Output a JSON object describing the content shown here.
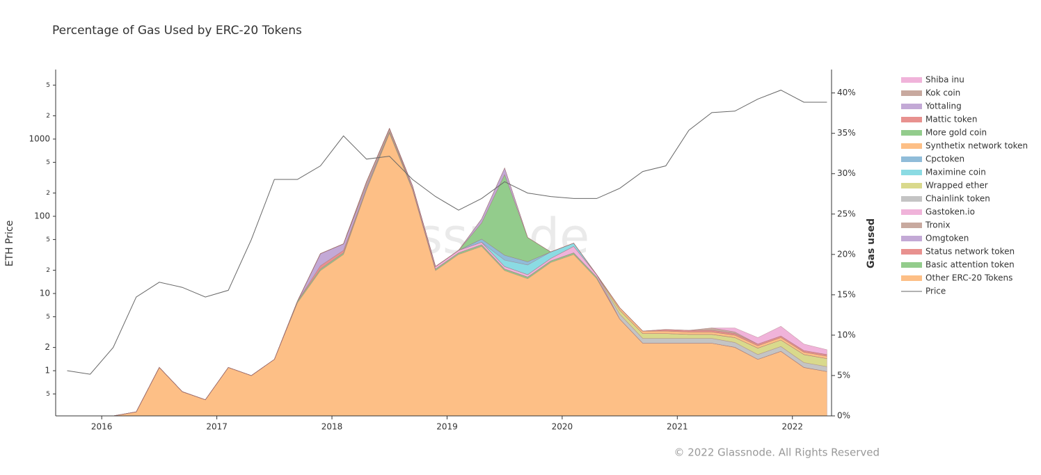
{
  "chart_data": {
    "type": "stacked-area",
    "title": "Percentage of Gas Used by ERC-20 Tokens",
    "ylabel": "ETH Price",
    "y2label": "Gas used",
    "watermark": "glassnode",
    "footer": "© 2022 Glassnode. All Rights Reserved",
    "log_y": true,
    "legend": "right",
    "x": [
      2015.7,
      2015.9,
      2016.1,
      2016.3,
      2016.5,
      2016.7,
      2016.9,
      2017.1,
      2017.3,
      2017.5,
      2017.7,
      2017.9,
      2018.1,
      2018.3,
      2018.5,
      2018.7,
      2018.9,
      2019.1,
      2019.3,
      2019.5,
      2019.7,
      2019.9,
      2020.1,
      2020.3,
      2020.5,
      2020.7,
      2020.9,
      2021.1,
      2021.3,
      2021.5,
      2021.7,
      2021.9,
      2022.1,
      2022.3
    ],
    "xlim": [
      2015.6,
      2022.34
    ],
    "xticks": [
      2016,
      2017,
      2018,
      2019,
      2020,
      2021,
      2022
    ],
    "ylim": [
      0.26,
      7950
    ],
    "yticks": [
      {
        "value": 0.5,
        "label": "5"
      },
      1,
      2,
      {
        "value": 5,
        "label": "5"
      },
      10,
      {
        "value": 20,
        "label": "2"
      },
      {
        "value": 50,
        "label": "5"
      },
      100,
      {
        "value": 200,
        "label": "2"
      },
      {
        "value": 500,
        "label": "5"
      },
      1000,
      {
        "value": 2000,
        "label": "2"
      },
      {
        "value": 5000,
        "label": "5"
      }
    ],
    "y2lim": [
      0,
      42.9
    ],
    "y2ticks": [
      {
        "value": 0,
        "label": "0%"
      },
      {
        "value": 5,
        "label": "5%"
      },
      {
        "value": 10,
        "label": "10%"
      },
      {
        "value": 15,
        "label": "15%"
      },
      {
        "value": 20,
        "label": "20%"
      },
      {
        "value": 25,
        "label": "25%"
      },
      {
        "value": 30,
        "label": "30%"
      },
      {
        "value": 35,
        "label": "35%"
      },
      {
        "value": 40,
        "label": "40%"
      }
    ],
    "series": [
      {
        "name": "Shiba inu",
        "color": "#f0b3da",
        "axis": "y2",
        "values": [
          0,
          0,
          0,
          0,
          0,
          0,
          0,
          0,
          0,
          0,
          0,
          0,
          0,
          0,
          0,
          0,
          0,
          0,
          0,
          0,
          0,
          0,
          0,
          0,
          0,
          0,
          0,
          0,
          0,
          0.5,
          0.8,
          1.2,
          0.8,
          0.6
        ]
      },
      {
        "name": "Kok coin",
        "color": "#c8a99f",
        "axis": "y2",
        "values": [
          0,
          0,
          0,
          0,
          0,
          0,
          0,
          0,
          0,
          0,
          0,
          0,
          0,
          0,
          0,
          0,
          0,
          0,
          0,
          0,
          0,
          0,
          0,
          0,
          0,
          0,
          0,
          0,
          0.3,
          0.2,
          0,
          0,
          0,
          0
        ]
      },
      {
        "name": "Yottaling",
        "color": "#c3a9d6",
        "axis": "y2",
        "values": [
          0,
          0,
          0,
          0,
          0,
          0,
          0,
          0,
          0,
          0,
          0,
          0,
          0,
          0,
          0,
          0,
          0,
          0,
          0.5,
          0.8,
          0,
          0,
          0,
          0,
          0,
          0,
          0,
          0,
          0,
          0,
          0,
          0,
          0,
          0
        ]
      },
      {
        "name": "Mattic token",
        "color": "#e8918f",
        "axis": "y2",
        "values": [
          0,
          0,
          0,
          0,
          0,
          0,
          0,
          0,
          0,
          0,
          0,
          0,
          0,
          0,
          0,
          0,
          0,
          0,
          0,
          0,
          0,
          0,
          0,
          0,
          0,
          0,
          0.2,
          0.2,
          0.2,
          0.2,
          0.2,
          0.2,
          0.2,
          0.2
        ]
      },
      {
        "name": "More gold coin",
        "color": "#93cc8c",
        "axis": "y2",
        "values": [
          0,
          0,
          0,
          0,
          0,
          0,
          0,
          0,
          0,
          0,
          0,
          0,
          0,
          0,
          0,
          0,
          0,
          0,
          2,
          10,
          3,
          0,
          0,
          0,
          0,
          0,
          0,
          0,
          0,
          0,
          0,
          0,
          0,
          0
        ]
      },
      {
        "name": "Synthetix network token",
        "color": "#fdbf86",
        "axis": "y2",
        "values": [
          0,
          0,
          0,
          0,
          0,
          0,
          0,
          0,
          0,
          0,
          0,
          0,
          0,
          0,
          0,
          0,
          0,
          0,
          0,
          0,
          0,
          0,
          0,
          0,
          0.3,
          0.3,
          0.3,
          0.3,
          0.3,
          0.3,
          0.3,
          0.3,
          0.3,
          0.3
        ]
      },
      {
        "name": "Cpctoken",
        "color": "#90bcd9",
        "axis": "y2",
        "values": [
          0,
          0,
          0,
          0,
          0,
          0,
          0,
          0,
          0,
          0,
          0,
          0,
          0,
          0,
          0,
          0,
          0,
          0,
          0.4,
          0.6,
          0.4,
          0,
          0,
          0,
          0,
          0,
          0,
          0,
          0,
          0,
          0,
          0,
          0,
          0
        ]
      },
      {
        "name": "Maximine coin",
        "color": "#8bdbe3",
        "axis": "y2",
        "values": [
          0,
          0,
          0,
          0,
          0,
          0,
          0,
          0,
          0,
          0,
          0,
          0,
          0,
          0,
          0,
          0,
          0,
          0,
          0,
          0.8,
          1.2,
          0.8,
          0.4,
          0,
          0,
          0,
          0,
          0,
          0,
          0,
          0,
          0,
          0,
          0
        ]
      },
      {
        "name": "Wrapped ether",
        "color": "#d9d98c",
        "axis": "y2",
        "values": [
          0,
          0,
          0,
          0,
          0,
          0,
          0,
          0,
          0,
          0,
          0,
          0,
          0,
          0,
          0,
          0,
          0,
          0,
          0,
          0,
          0,
          0,
          0,
          0,
          0.5,
          0.6,
          0.6,
          0.5,
          0.5,
          0.6,
          0.8,
          0.8,
          1,
          1
        ]
      },
      {
        "name": "Chainlink token",
        "color": "#c4c4c4",
        "axis": "y2",
        "values": [
          0,
          0,
          0,
          0,
          0,
          0,
          0,
          0,
          0,
          0,
          0,
          0,
          0,
          0,
          0,
          0,
          0,
          0,
          0,
          0,
          0,
          0,
          0,
          0,
          0.6,
          0.6,
          0.6,
          0.6,
          0.6,
          0.6,
          0.6,
          0.6,
          0.6,
          0.6
        ]
      },
      {
        "name": "Gastoken.io",
        "color": "#f0b3da",
        "axis": "y2",
        "values": [
          0,
          0,
          0,
          0,
          0,
          0,
          0,
          0,
          0,
          0,
          0,
          0,
          0,
          0,
          0,
          0.3,
          0.3,
          0.3,
          0.3,
          0.3,
          0.3,
          0.3,
          0.8,
          0.3,
          0,
          0,
          0,
          0,
          0,
          0,
          0,
          0,
          0,
          0
        ]
      },
      {
        "name": "Tronix",
        "color": "#c8a99f",
        "axis": "y2",
        "values": [
          0,
          0,
          0,
          0,
          0,
          0,
          0,
          0,
          0,
          0,
          0,
          0,
          0,
          0.5,
          0.4,
          0,
          0,
          0,
          0,
          0,
          0,
          0,
          0,
          0,
          0,
          0,
          0,
          0,
          0,
          0,
          0,
          0,
          0,
          0
        ]
      },
      {
        "name": "Omgtoken",
        "color": "#c3a9d6",
        "axis": "y2",
        "values": [
          0,
          0,
          0,
          0,
          0,
          0,
          0,
          0,
          0,
          0,
          0,
          1.5,
          0.8,
          0.3,
          0,
          0,
          0,
          0,
          0,
          0,
          0,
          0,
          0,
          0,
          0,
          0,
          0,
          0,
          0,
          0,
          0,
          0,
          0,
          0
        ]
      },
      {
        "name": "Status network token",
        "color": "#e8918f",
        "axis": "y2",
        "values": [
          0,
          0,
          0,
          0,
          0,
          0,
          0,
          0,
          0,
          0,
          0,
          0.4,
          0.3,
          0,
          0,
          0,
          0,
          0,
          0,
          0,
          0,
          0,
          0,
          0,
          0,
          0,
          0,
          0,
          0,
          0,
          0,
          0,
          0,
          0
        ]
      },
      {
        "name": "Basic attention token",
        "color": "#93cc8c",
        "axis": "y2",
        "values": [
          0,
          0,
          0,
          0,
          0,
          0,
          0,
          0,
          0,
          0,
          0.2,
          0.2,
          0.2,
          0.2,
          0.2,
          0.2,
          0.2,
          0.2,
          0.2,
          0.2,
          0.2,
          0.2,
          0.2,
          0.2,
          0,
          0,
          0,
          0,
          0,
          0,
          0,
          0,
          0,
          0
        ]
      },
      {
        "name": "Other ERC-20 Tokens",
        "color": "#fdbf86",
        "axis": "y2",
        "values": [
          0,
          0,
          0,
          0.5,
          6,
          3,
          2,
          6,
          5,
          7,
          14,
          18,
          20,
          28,
          35,
          28,
          18,
          20,
          21,
          18,
          17,
          19,
          20,
          17,
          12,
          9,
          9,
          9,
          9,
          8.5,
          7,
          8,
          6,
          5.5
        ]
      }
    ],
    "price": {
      "name": "Price",
      "color": "#666666",
      "values": [
        1,
        0.9,
        2,
        9,
        14,
        12,
        9,
        11,
        50,
        300,
        300,
        450,
        1100,
        550,
        600,
        300,
        180,
        120,
        170,
        280,
        200,
        180,
        170,
        170,
        230,
        380,
        450,
        1300,
        2200,
        2300,
        3300,
        4300,
        3000,
        3000
      ]
    }
  }
}
